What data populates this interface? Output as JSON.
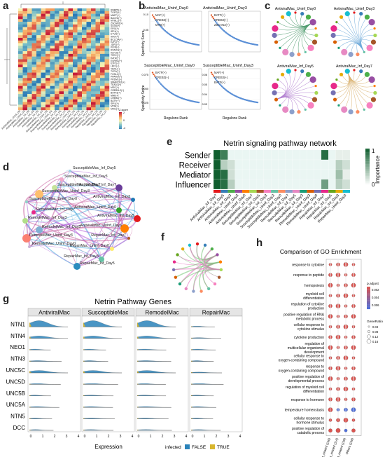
{
  "figure": {
    "labels": {
      "a": "a",
      "b": "b",
      "c": "c",
      "d": "d",
      "e": "e",
      "f": "f",
      "g": "g",
      "h": "h"
    }
  },
  "panel_a": {
    "row_labels": [
      "RBBP5(+)",
      "TGIF2(+)",
      "MAFF(+)",
      "BACH2(+)",
      "MYBL1(+)",
      "ZSCAN2(+)",
      "SOX6(+)",
      "ERG(+)",
      "IRF4(+)",
      "ETV3(+)",
      "IKKF(+)",
      "BCL11A(+)",
      "E2F1(+)",
      "JDP2(+)",
      "KLF8(+)",
      "RUNX3(+)",
      "KLF15(+)",
      "TFEC(+)",
      "EZH2(+)",
      "ESRRA(+)",
      "E2F2(+)",
      "LEF1(+)",
      "YBX1(+)",
      "TCF4(+)",
      "FOSL1(+)",
      "PPARG(+)",
      "PRDM1(+)",
      "SMARCB1(+)",
      "TEAD1(+)",
      "MSC(+)",
      "CREB3L2(+)",
      "BATF3(+)",
      "MAF(+)",
      "CREB3(+)",
      "BATF(+)",
      "SPI1(+)",
      "MYB(+)",
      "MXI1(+)"
    ],
    "col_labels": [
      "AntiviralMac_Uninf_D0",
      "AntiviralMac_Uninf_D3",
      "AntiviralMac_Inf_D0",
      "AntiviralMac_Inf_D3",
      "AntiviralMac_Inf_D5",
      "AntiviralMac_Inf_D7",
      "SusceptibleMac_Uninf_D0",
      "SusceptibleMac_Uninf_D3",
      "SusceptibleMac_Inf_D3",
      "SusceptibleMac_Inf_D5",
      "SusceptibleMac_Inf_D7",
      "RemodelMac_Uninf_D0",
      "RemodelMac_Uninf_D3",
      "RemodelMac_Inf_D3",
      "RemodelMac_Inf_D5",
      "RemodelMac_Inf_D7",
      "RepairMac_Uninf_D0",
      "RepairMac_Inf_D3",
      "RepairMac_Inf_D5",
      "RepairMac_Inf_D7"
    ],
    "legend_title": "Z-score",
    "legend_ticks": [
      "2",
      "0",
      "-2"
    ]
  },
  "panel_b": {
    "titles": [
      "AntiviralMac_Uninf_Day0",
      "AntiviralMac_Uninf_Day3",
      "SusceptibleMac_Uninf_Day0",
      "SusceptibleMac_Uninf_Day3"
    ],
    "ylabel": "Specificity Score",
    "xlabel": "Regulons Rank",
    "top_labels": [
      [
        "MAF(+)",
        "CREB3(+)",
        "MYB(+)"
      ],
      [
        "BATF(+)",
        "CREB3(+)",
        "ZSCAN2(+)"
      ],
      [
        "BATF(+)",
        "CREB3(+)"
      ],
      [
        "MAF(+)",
        "CREB3(+)",
        "BATF(+)"
      ]
    ],
    "yticks_top": [
      "0.10",
      "0.05"
    ],
    "yticks_bot": [
      "0.075",
      "0.050",
      "0.025"
    ],
    "yticks_bot_r": [
      "0.06",
      "0.05",
      "0.04",
      "0.03"
    ]
  },
  "panel_c": {
    "titles": [
      "AntiviralMac_Uninf_Day0",
      "AntiviralMac_Uninf_Day3",
      "AntiviralMac_Inf_Day5",
      "AntiviralMac_Inf_Day7"
    ]
  },
  "panel_d": {
    "nodes": [
      "SusceptibleMac_Inf_Day5",
      "SusceptibleMac_Inf_Day3",
      "SusceptibleMac_Inf_Day7",
      "AntiviralMac_Inf_Day7",
      "SusceptibleMac_Uninf_Day3",
      "SusceptibleMac_Uninf_Day0",
      "RemodelMac_Inf_Day7",
      "RemodelMac_Inf_Day3",
      "RemodelMac_Inf_Day5",
      "RemodelMac_Uninf_Day3",
      "RemodelMac_Uninf_Day0",
      "AntiviralMac_Inf_Day3",
      "AntiviralMac_Uninf_Day0",
      "AntiviralMac_Inf_Day5",
      "AntiviralMac_Uninf_Day3",
      "RepairMac_Inf_Day7",
      "RepairMac_Uninf_Day0",
      "RepairMac_Inf_Day3",
      "RepairMac_Inf_Day5"
    ]
  },
  "panel_e": {
    "title": "Netrin signaling pathway network",
    "rows": [
      "Sender",
      "Receiver",
      "Mediator",
      "Influencer"
    ],
    "cols": [
      "AntiviralMac_Inf_Day7",
      "AntiviralMac_Inf_Day5",
      "AntiviralMac_Inf_Day3",
      "AntiviralMac_Uninf_Day3",
      "AntiviralMac_Uninf_Day0",
      "SusceptibleMac_Inf_Day7",
      "SusceptibleMac_Inf_Day5",
      "SusceptibleMac_Inf_Day3",
      "SusceptibleMac_Uninf_Day3",
      "SusceptibleMac_Uninf_Day0",
      "RemodelMac_Inf_Day7",
      "RemodelMac_Inf_Day5",
      "RemodelMac_Inf_Day3",
      "RemodelMac_Uninf_Day3",
      "RemodelMac_Uninf_Day0",
      "RepairMac_Inf_Day7",
      "RepairMac_Inf_Day5",
      "RepairMac_Inf_Day3",
      "RepairMac_Uninf_Day0"
    ],
    "legend_title": "Importance",
    "legend_max": "1",
    "legend_min": "0",
    "values": [
      [
        1,
        0.8,
        0,
        0,
        0,
        0,
        0,
        0,
        0,
        0,
        0,
        0,
        0,
        0,
        0,
        0.9,
        0,
        0.1,
        0.1
      ],
      [
        1,
        0.3,
        0.2,
        0,
        0,
        0,
        0,
        0,
        0,
        0,
        0,
        0,
        0,
        0,
        0,
        0,
        0,
        0.3,
        0.2
      ],
      [
        1,
        0.9,
        0.2,
        0,
        0,
        0,
        0,
        0,
        0,
        0,
        0,
        0,
        0,
        0,
        0,
        0,
        0,
        0.4,
        0.1
      ],
      [
        1,
        0.9,
        0.3,
        0,
        0,
        0,
        0,
        0,
        0,
        0,
        0,
        0,
        0,
        0,
        0,
        0.6,
        0,
        0.3,
        0.2
      ]
    ]
  },
  "panel_g": {
    "title": "Netrin Pathway Genes",
    "groups": [
      "AntiviralMac",
      "SusceptibleMac",
      "RemodelMac",
      "RepairMac"
    ],
    "genes": [
      "NTN1",
      "NTN4",
      "NEO1",
      "NTN3",
      "UNC5C",
      "UNC5D",
      "UNC5B",
      "UNC5A",
      "NTN5",
      "DCC"
    ],
    "xticks": [
      "0",
      "1",
      "2",
      "3",
      "4"
    ],
    "xlabel": "Expression",
    "legend_title": "infected",
    "legend_false": "FALSE",
    "legend_true": "TRUE"
  },
  "panel_h": {
    "title": "Comparison of GO Enrichment",
    "terms": [
      "response to cytokine",
      "response to peptide",
      "hemopoiesis",
      "myeloid cell differentiation",
      "regulation of cytokine production",
      "positive regulation of RNA metabolic process",
      "cellular response to cytokine stimulus",
      "cytokine production",
      "regulation of multicellular organismal development",
      "cellular response to oxygen-containing compound",
      "response to oxygen-containing compound",
      "positive regulation of developmental process",
      "regulation of myeloid cell differentiation",
      "response to hormone",
      "temperature homeostasis",
      "cellular response to hormone stimulus",
      "positive regulation of catabolic process"
    ],
    "x_labels": [
      "Netrin_related (106)",
      "Virus_related (114)",
      "Both_related (109)",
      "Others (108)"
    ],
    "padj_title": "p.adjust",
    "padj_ticks": [
      "0.002",
      "0.004",
      "0.006"
    ],
    "ratio_title": "GeneRatio",
    "ratio_ticks": [
      "0.04",
      "0.08",
      "0.12",
      "0.16"
    ]
  },
  "colors": {
    "false": "#2b83ba",
    "true": "#d8b62e",
    "heat_low": "#2c7bb6",
    "heat_mid": "#f7f4b4",
    "heat_high": "#c51b3a",
    "importance_high": "#0f5e2e",
    "dot_red": "#d9534f",
    "dot_blue": "#4f6fd9"
  }
}
